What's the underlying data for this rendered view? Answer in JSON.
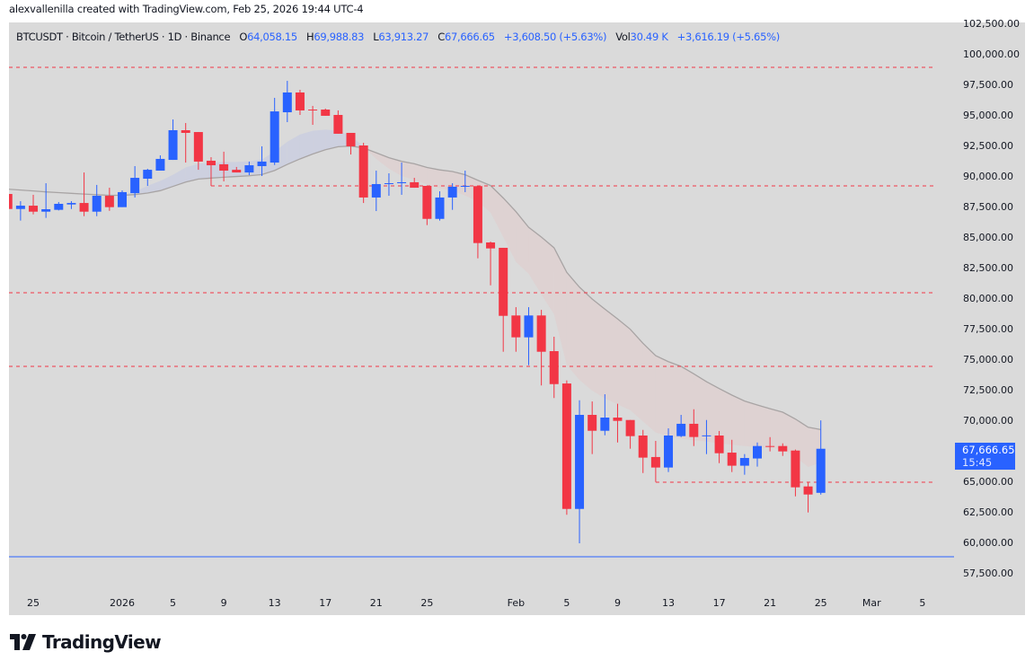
{
  "credit": "alexvallenilla created with TradingView.com, Feb 25, 2026 19:44 UTC-4",
  "legend": {
    "symbol": "BTCUSDT · Bitcoin / TetherUS · 1D · Binance",
    "open_label": "O",
    "open": "64,058.15",
    "high_label": "H",
    "high": "69,988.83",
    "low_label": "L",
    "low": "63,913.27",
    "close_label": "C",
    "close": "67,666.65",
    "change": "+3,608.50 (+5.63%)",
    "vol_label": "Vol",
    "vol": "30.49 K",
    "vol_change": "+3,616.19 (+5.65%)"
  },
  "last_price": {
    "price": "67,666.65",
    "countdown": "15:45"
  },
  "logo": {
    "text": "TradingView"
  },
  "colors": {
    "up": "#2962ff",
    "down": "#f23645",
    "background": "#dadada",
    "ma": "#a8a4a4",
    "band_above": "#c9cde0",
    "band_below": "#dfd0d0",
    "level": "#f23645",
    "support": "#2962ff"
  },
  "chart_data": {
    "type": "candlestick",
    "title": "",
    "xlabel": "",
    "ylabel": "",
    "ylim": [
      57000,
      102600
    ],
    "grid": false,
    "price_ticks": [
      "102,500.00",
      "100,000.00",
      "97,500.00",
      "95,000.00",
      "92,500.00",
      "90,000.00",
      "87,500.00",
      "85,000.00",
      "82,500.00",
      "80,000.00",
      "77,500.00",
      "75,000.00",
      "72,500.00",
      "70,000.00",
      "67,500.00",
      "65,000.00",
      "62,500.00",
      "60,000.00",
      "57,500.00"
    ],
    "time_ticks": [
      {
        "date": "2025-12-25",
        "label": "25"
      },
      {
        "date": "2026-01-01",
        "label": "2026"
      },
      {
        "date": "2026-01-05",
        "label": "5"
      },
      {
        "date": "2026-01-09",
        "label": "9"
      },
      {
        "date": "2026-01-13",
        "label": "13"
      },
      {
        "date": "2026-01-17",
        "label": "17"
      },
      {
        "date": "2026-01-21",
        "label": "21"
      },
      {
        "date": "2026-01-25",
        "label": "25"
      },
      {
        "date": "2026-02-01",
        "label": "Feb"
      },
      {
        "date": "2026-02-05",
        "label": "5"
      },
      {
        "date": "2026-02-09",
        "label": "9"
      },
      {
        "date": "2026-02-13",
        "label": "13"
      },
      {
        "date": "2026-02-17",
        "label": "17"
      },
      {
        "date": "2026-02-21",
        "label": "21"
      },
      {
        "date": "2026-02-25",
        "label": "25"
      },
      {
        "date": "2026-03-01",
        "label": "Mar"
      },
      {
        "date": "2026-03-05",
        "label": "5"
      }
    ],
    "candle_fields": [
      "date",
      "open",
      "high",
      "low",
      "close"
    ],
    "candles": [
      [
        "2025-12-23",
        88530,
        88600,
        87200,
        87300
      ],
      [
        "2025-12-24",
        87300,
        87940,
        86350,
        87570
      ],
      [
        "2025-12-25",
        87570,
        88460,
        86860,
        87080
      ],
      [
        "2025-12-26",
        87080,
        89410,
        86570,
        87280
      ],
      [
        "2025-12-27",
        87230,
        87870,
        87180,
        87720
      ],
      [
        "2025-12-28",
        87670,
        87940,
        87300,
        87790
      ],
      [
        "2025-12-29",
        87790,
        90290,
        86710,
        87080
      ],
      [
        "2025-12-30",
        87080,
        89270,
        86710,
        88380
      ],
      [
        "2025-12-31",
        88380,
        89040,
        87150,
        87450
      ],
      [
        "2026-01-01",
        87450,
        88820,
        87450,
        88680
      ],
      [
        "2026-01-02",
        88600,
        90810,
        88240,
        89850
      ],
      [
        "2026-01-03",
        89780,
        90590,
        89190,
        90510
      ],
      [
        "2026-01-04",
        90440,
        91690,
        90440,
        91400
      ],
      [
        "2026-01-05",
        91320,
        94630,
        91320,
        93750
      ],
      [
        "2026-01-06",
        93750,
        94340,
        91100,
        93530
      ],
      [
        "2026-01-07",
        93600,
        93600,
        90510,
        91180
      ],
      [
        "2026-01-08",
        91250,
        91540,
        89190,
        90880
      ],
      [
        "2026-01-09",
        90960,
        91990,
        89560,
        90440
      ],
      [
        "2026-01-10",
        90510,
        90740,
        90290,
        90290
      ],
      [
        "2026-01-11",
        90290,
        91180,
        90070,
        90880
      ],
      [
        "2026-01-12",
        90810,
        92430,
        90000,
        91180
      ],
      [
        "2026-01-13",
        91100,
        96400,
        90900,
        95290
      ],
      [
        "2026-01-14",
        95220,
        97790,
        94410,
        96840
      ],
      [
        "2026-01-15",
        96840,
        97060,
        95000,
        95370
      ],
      [
        "2026-01-16",
        95440,
        95740,
        94190,
        95370
      ],
      [
        "2026-01-17",
        95440,
        95520,
        94930,
        94930
      ],
      [
        "2026-01-18",
        95000,
        95370,
        93460,
        93460
      ],
      [
        "2026-01-19",
        93530,
        93530,
        91760,
        92430
      ],
      [
        "2026-01-20",
        92500,
        92720,
        87790,
        88240
      ],
      [
        "2026-01-21",
        88240,
        90440,
        87130,
        89340
      ],
      [
        "2026-01-22",
        89340,
        90220,
        88380,
        89410
      ],
      [
        "2026-01-23",
        89410,
        91100,
        88460,
        89490
      ],
      [
        "2026-01-24",
        89490,
        89850,
        89040,
        89040
      ],
      [
        "2026-01-25",
        89190,
        89190,
        85980,
        86490
      ],
      [
        "2026-01-26",
        86490,
        88750,
        86350,
        88240
      ],
      [
        "2026-01-27",
        88240,
        89410,
        87230,
        89120
      ],
      [
        "2026-01-28",
        89120,
        90440,
        88680,
        89190
      ],
      [
        "2026-01-29",
        89170,
        89190,
        83260,
        84510
      ],
      [
        "2026-01-30",
        84560,
        84630,
        81050,
        84070
      ],
      [
        "2026-01-31",
        84120,
        84120,
        75610,
        78550
      ],
      [
        "2026-02-01",
        78580,
        79260,
        75610,
        76790
      ],
      [
        "2026-02-02",
        76790,
        79260,
        74510,
        78580
      ],
      [
        "2026-02-03",
        78580,
        79040,
        72850,
        75610
      ],
      [
        "2026-02-04",
        75660,
        76840,
        71820,
        72960
      ],
      [
        "2026-02-05",
        73010,
        73260,
        62260,
        62740
      ],
      [
        "2026-02-06",
        62740,
        71640,
        59930,
        70440
      ],
      [
        "2026-02-07",
        70440,
        71540,
        67230,
        69140
      ],
      [
        "2026-02-08",
        69140,
        72130,
        68770,
        70220
      ],
      [
        "2026-02-09",
        70220,
        71350,
        68180,
        69950
      ],
      [
        "2026-02-10",
        70020,
        70020,
        67670,
        68700
      ],
      [
        "2026-02-11",
        68750,
        69210,
        65680,
        66940
      ],
      [
        "2026-02-12",
        66990,
        68310,
        64950,
        66130
      ],
      [
        "2026-02-13",
        66130,
        69340,
        65760,
        68750
      ],
      [
        "2026-02-14",
        68700,
        70440,
        68620,
        69710
      ],
      [
        "2026-02-15",
        69710,
        70900,
        67890,
        68630
      ],
      [
        "2026-02-16",
        68730,
        70020,
        67230,
        68760
      ],
      [
        "2026-02-17",
        68750,
        69120,
        66490,
        67300
      ],
      [
        "2026-02-18",
        67350,
        68400,
        65760,
        66280
      ],
      [
        "2026-02-19",
        66280,
        67230,
        65540,
        66910
      ],
      [
        "2026-02-20",
        66870,
        68180,
        66200,
        67890
      ],
      [
        "2026-02-21",
        67890,
        68620,
        67450,
        67820
      ],
      [
        "2026-02-22",
        67890,
        68110,
        67080,
        67450
      ],
      [
        "2026-02-23",
        67520,
        67600,
        63770,
        64510
      ],
      [
        "2026-02-24",
        64580,
        64950,
        62450,
        63920
      ],
      [
        "2026-02-25",
        64058.15,
        69988.83,
        63913.27,
        67666.65
      ]
    ],
    "ma": [
      88920,
      88850,
      88780,
      88700,
      88640,
      88580,
      88520,
      88470,
      88420,
      88420,
      88480,
      88600,
      88800,
      89150,
      89500,
      89750,
      89830,
      89900,
      89960,
      90020,
      90120,
      90450,
      90950,
      91400,
      91800,
      92150,
      92400,
      92450,
      92300,
      91900,
      91500,
      91200,
      91000,
      90700,
      90500,
      90370,
      90100,
      89650,
      89220,
      88200,
      87080,
      85800,
      85000,
      84120,
      82110,
      80900,
      79930,
      79100,
      78300,
      77450,
      76300,
      75290,
      74800,
      74410,
      73800,
      73160,
      72600,
      72060,
      71570,
      71250,
      70950,
      70660,
      70100,
      69430,
      69240
    ],
    "band": [
      88900,
      88830,
      88760,
      88680,
      88620,
      88560,
      88500,
      88450,
      88400,
      88420,
      88700,
      89200,
      89600,
      90100,
      90700,
      91000,
      91100,
      91150,
      91150,
      91200,
      91350,
      92000,
      92800,
      93400,
      93700,
      93800,
      93700,
      93300,
      92400,
      91400,
      90600,
      90000,
      89700,
      89300,
      89000,
      88800,
      88400,
      87900,
      87010,
      85000,
      82970,
      81990,
      80300,
      78680,
      74510,
      73300,
      72430,
      71800,
      71300,
      70830,
      69900,
      69000,
      68700,
      68500,
      68350,
      68260,
      68100,
      68000,
      67890,
      67800,
      67700,
      67650,
      67000,
      66180,
      66540
    ],
    "levels": [
      {
        "price": 98900,
        "style": "dashed",
        "color": "#f23645"
      },
      {
        "price": 89190,
        "style": "dashed",
        "color": "#f23645",
        "from": "2026-01-08"
      },
      {
        "price": 80440,
        "style": "dashed",
        "color": "#f23645"
      },
      {
        "price": 74410,
        "style": "dashed",
        "color": "#f23645"
      },
      {
        "price": 64930,
        "style": "dashed",
        "color": "#f23645",
        "from": "2026-02-12"
      },
      {
        "price": 58820,
        "style": "solid",
        "color": "#2962ff"
      }
    ]
  }
}
